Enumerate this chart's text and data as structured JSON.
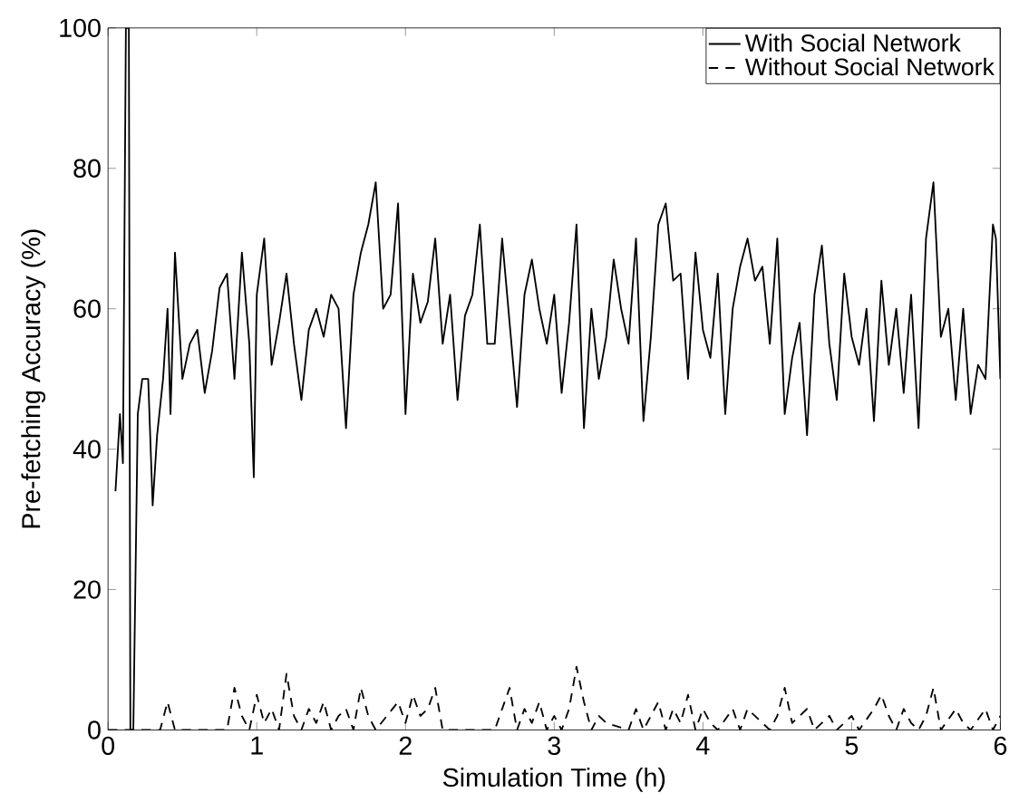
{
  "chart_data": {
    "type": "line",
    "xlabel": "Simulation Time (h)",
    "ylabel": "Pre-fetching Accuracy (%)",
    "xlim": [
      0,
      6
    ],
    "ylim": [
      0,
      100
    ],
    "xticks": [
      0,
      1,
      2,
      3,
      4,
      5,
      6
    ],
    "yticks": [
      0,
      20,
      40,
      60,
      80,
      100
    ],
    "grid": false,
    "legend": "top right",
    "marker": "none",
    "series": [
      {
        "name": "With Social Network",
        "color": "#000000",
        "line_style": "solid",
        "x": [
          0.05,
          0.08,
          0.1,
          0.12,
          0.14,
          0.15,
          0.17,
          0.2,
          0.23,
          0.27,
          0.3,
          0.33,
          0.37,
          0.4,
          0.42,
          0.45,
          0.5,
          0.55,
          0.6,
          0.65,
          0.7,
          0.75,
          0.8,
          0.85,
          0.9,
          0.95,
          0.98,
          1.0,
          1.05,
          1.1,
          1.15,
          1.2,
          1.25,
          1.3,
          1.35,
          1.4,
          1.45,
          1.5,
          1.55,
          1.6,
          1.65,
          1.7,
          1.75,
          1.8,
          1.85,
          1.9,
          1.95,
          2.0,
          2.05,
          2.1,
          2.15,
          2.2,
          2.25,
          2.3,
          2.35,
          2.4,
          2.45,
          2.5,
          2.55,
          2.6,
          2.65,
          2.7,
          2.75,
          2.8,
          2.85,
          2.9,
          2.95,
          3.0,
          3.05,
          3.1,
          3.15,
          3.2,
          3.25,
          3.3,
          3.35,
          3.4,
          3.45,
          3.5,
          3.55,
          3.6,
          3.65,
          3.7,
          3.75,
          3.8,
          3.85,
          3.9,
          3.95,
          4.0,
          4.05,
          4.1,
          4.15,
          4.2,
          4.25,
          4.3,
          4.35,
          4.4,
          4.45,
          4.5,
          4.55,
          4.6,
          4.65,
          4.7,
          4.75,
          4.8,
          4.85,
          4.9,
          4.95,
          5.0,
          5.05,
          5.1,
          5.15,
          5.2,
          5.25,
          5.3,
          5.35,
          5.4,
          5.45,
          5.5,
          5.55,
          5.6,
          5.65,
          5.7,
          5.75,
          5.8,
          5.85,
          5.9,
          5.95,
          5.97,
          6.0
        ],
        "values": [
          34,
          45,
          38,
          100,
          100,
          0,
          0,
          45,
          50,
          50,
          32,
          42,
          50,
          60,
          45,
          68,
          50,
          55,
          57,
          48,
          54,
          63,
          65,
          50,
          68,
          55,
          36,
          62,
          70,
          52,
          58,
          65,
          55,
          47,
          57,
          60,
          56,
          62,
          60,
          43,
          62,
          68,
          72,
          78,
          60,
          62,
          75,
          45,
          65,
          58,
          61,
          70,
          55,
          62,
          47,
          59,
          62,
          72,
          55,
          55,
          70,
          58,
          46,
          62,
          67,
          60,
          55,
          62,
          48,
          58,
          72,
          43,
          60,
          50,
          56,
          67,
          60,
          55,
          70,
          44,
          56,
          72,
          75,
          64,
          65,
          50,
          68,
          57,
          53,
          65,
          45,
          60,
          66,
          70,
          64,
          66,
          55,
          70,
          45,
          53,
          58,
          42,
          62,
          69,
          55,
          47,
          65,
          56,
          52,
          60,
          44,
          64,
          52,
          60,
          48,
          62,
          43,
          70,
          78,
          56,
          60,
          47,
          60,
          45,
          52,
          50,
          72,
          70,
          50
        ]
      },
      {
        "name": "Without Social Network",
        "color": "#000000",
        "line_style": "dashed",
        "x": [
          0,
          0.35,
          0.4,
          0.45,
          0.8,
          0.85,
          0.9,
          0.95,
          1.0,
          1.05,
          1.1,
          1.15,
          1.2,
          1.25,
          1.3,
          1.35,
          1.4,
          1.45,
          1.5,
          1.55,
          1.6,
          1.65,
          1.7,
          1.75,
          1.8,
          1.95,
          2.0,
          2.05,
          2.1,
          2.15,
          2.2,
          2.25,
          2.6,
          2.65,
          2.7,
          2.75,
          2.8,
          2.85,
          2.9,
          2.95,
          3.0,
          3.05,
          3.1,
          3.15,
          3.2,
          3.25,
          3.3,
          3.35,
          3.5,
          3.55,
          3.6,
          3.65,
          3.7,
          3.75,
          3.8,
          3.85,
          3.9,
          3.95,
          4.0,
          4.05,
          4.1,
          4.2,
          4.25,
          4.3,
          4.4,
          4.45,
          4.5,
          4.55,
          4.6,
          4.7,
          4.75,
          4.85,
          4.9,
          5.0,
          5.05,
          5.15,
          5.2,
          5.25,
          5.3,
          5.35,
          5.4,
          5.45,
          5.5,
          5.55,
          5.6,
          5.7,
          5.75,
          5.8,
          5.9,
          5.95,
          6.0
        ],
        "values": [
          0,
          0,
          4,
          0,
          0,
          6,
          2,
          0,
          5,
          1,
          3,
          0,
          8,
          2,
          0,
          3,
          1,
          4,
          0,
          2,
          3,
          0,
          6,
          2,
          0,
          4,
          1,
          5,
          2,
          3,
          6,
          0,
          0,
          3,
          6,
          0,
          3,
          1,
          4,
          0,
          2,
          0,
          3,
          9,
          4,
          0,
          2,
          1,
          0,
          3,
          0,
          2,
          4,
          0,
          3,
          1,
          5,
          0,
          3,
          1,
          0,
          3,
          0,
          3,
          1,
          0,
          2,
          6,
          1,
          3,
          0,
          2,
          0,
          2,
          0,
          3,
          5,
          2,
          0,
          3,
          1,
          0,
          2,
          6,
          0,
          3,
          1,
          0,
          3,
          0,
          2
        ]
      }
    ]
  }
}
